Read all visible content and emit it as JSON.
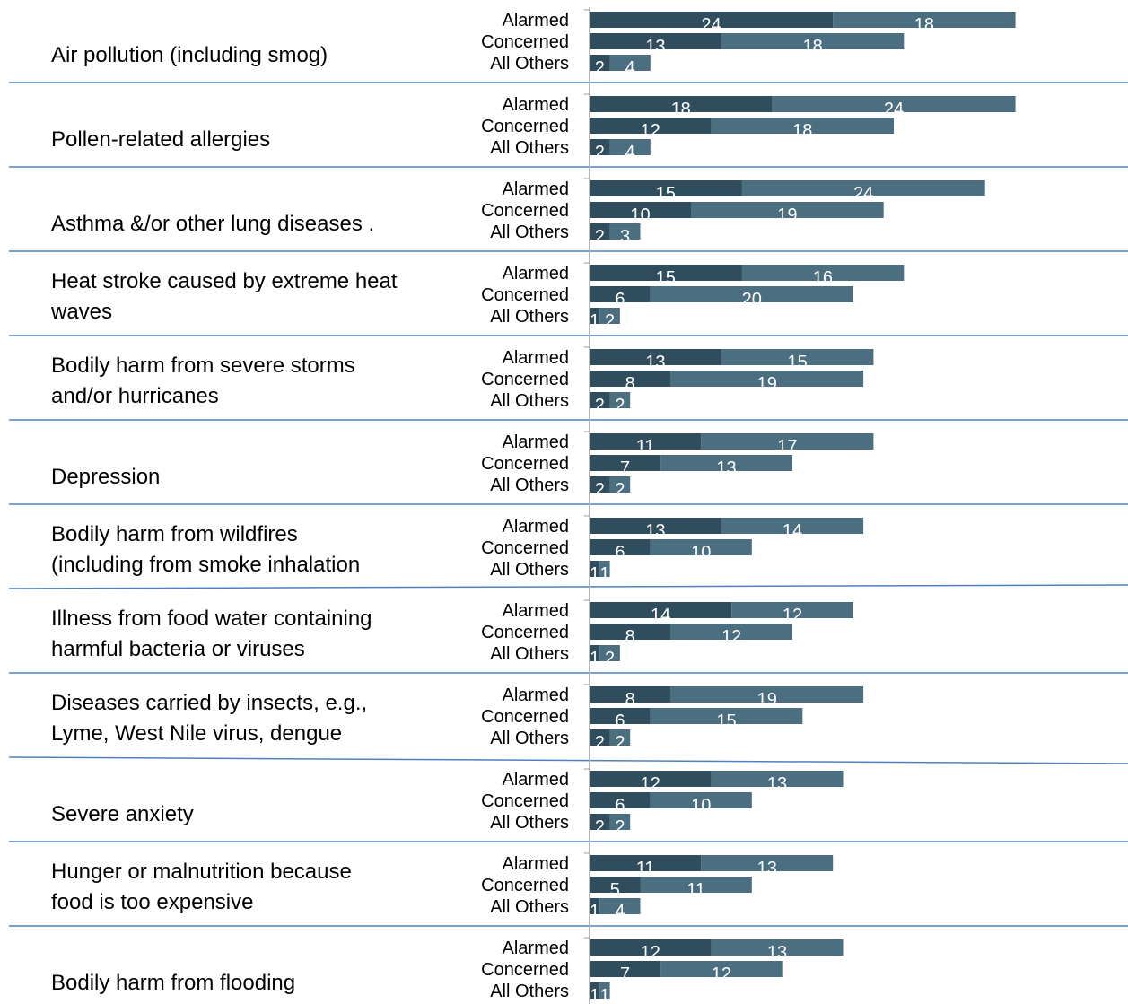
{
  "chart_data": {
    "type": "bar",
    "orientation": "horizontal",
    "stacked": true,
    "title": "",
    "xlabel": "",
    "ylabel": "",
    "grid": false,
    "groups": [
      "Alarmed",
      "Concerned",
      "All Others"
    ],
    "colors": {
      "series_1": "#2f4d5c",
      "series_2": "#4b6e80",
      "separator": "#4f81bd",
      "axis": "#9e9e9e"
    },
    "categories": [
      {
        "label": "Air pollution (including smog)",
        "values": [
          [
            24,
            18
          ],
          [
            13,
            18
          ],
          [
            2,
            4
          ]
        ]
      },
      {
        "label": "Pollen-related allergies",
        "values": [
          [
            18,
            24
          ],
          [
            12,
            18
          ],
          [
            2,
            4
          ]
        ]
      },
      {
        "label": "Asthma &/or other lung diseases .",
        "values": [
          [
            15,
            24
          ],
          [
            10,
            19
          ],
          [
            2,
            3
          ]
        ]
      },
      {
        "label": "Heat stroke caused by extreme heat waves",
        "values": [
          [
            15,
            16
          ],
          [
            6,
            20
          ],
          [
            1,
            2
          ]
        ]
      },
      {
        "label": "Bodily harm from severe storms and/or hurricanes",
        "values": [
          [
            13,
            15
          ],
          [
            8,
            19
          ],
          [
            2,
            2
          ]
        ]
      },
      {
        "label": "Depression",
        "values": [
          [
            11,
            17
          ],
          [
            7,
            13
          ],
          [
            2,
            2
          ]
        ]
      },
      {
        "label": "Bodily harm from wildfires (including from smoke inhalation",
        "values": [
          [
            13,
            14
          ],
          [
            6,
            10
          ],
          [
            1,
            1
          ]
        ]
      },
      {
        "label": "Illness from food water containing harmful bacteria or viruses",
        "values": [
          [
            14,
            12
          ],
          [
            8,
            12
          ],
          [
            1,
            2
          ]
        ]
      },
      {
        "label": "Diseases carried by insects, e.g., Lyme, West Nile virus, dengue",
        "values": [
          [
            8,
            19
          ],
          [
            6,
            15
          ],
          [
            2,
            2
          ]
        ]
      },
      {
        "label": "Severe anxiety",
        "values": [
          [
            12,
            13
          ],
          [
            6,
            10
          ],
          [
            2,
            2
          ]
        ]
      },
      {
        "label": "Hunger or malnutrition because food is too expensive",
        "values": [
          [
            11,
            13
          ],
          [
            5,
            11
          ],
          [
            1,
            4
          ]
        ]
      },
      {
        "label": "Bodily harm from flooding",
        "values": [
          [
            12,
            13
          ],
          [
            7,
            12
          ],
          [
            1,
            1
          ]
        ]
      }
    ]
  }
}
